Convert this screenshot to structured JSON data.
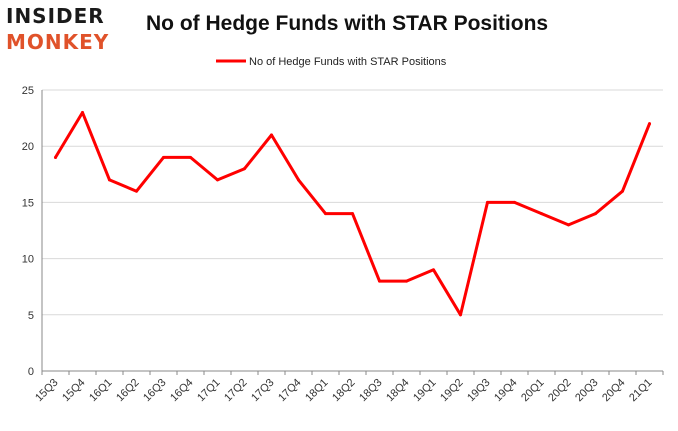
{
  "logo": {
    "line1": "INSIDER",
    "line2": "MONKEY"
  },
  "chart_data": {
    "type": "line",
    "title": "No of Hedge Funds with STAR Positions",
    "xlabel": "",
    "ylabel": "",
    "categories": [
      "15Q3",
      "15Q4",
      "16Q1",
      "16Q2",
      "16Q3",
      "16Q4",
      "17Q1",
      "17Q2",
      "17Q3",
      "17Q4",
      "18Q1",
      "18Q2",
      "18Q3",
      "18Q4",
      "19Q1",
      "19Q2",
      "19Q3",
      "19Q4",
      "20Q1",
      "20Q2",
      "20Q3",
      "20Q4",
      "21Q1"
    ],
    "series": [
      {
        "name": "No of Hedge Funds with STAR Positions",
        "values": [
          19,
          23,
          17,
          16,
          19,
          19,
          17,
          18,
          21,
          17,
          14,
          14,
          8,
          8,
          9,
          5,
          15,
          15,
          14,
          13,
          14,
          16,
          22
        ]
      }
    ],
    "ylim": [
      0,
      25
    ],
    "yticks": [
      0,
      5,
      10,
      15,
      20,
      25
    ],
    "grid": true,
    "legend": "top-center",
    "colors": {
      "line": "#ff0000",
      "grid": "#d9d9d9",
      "axis": "#888888"
    }
  }
}
